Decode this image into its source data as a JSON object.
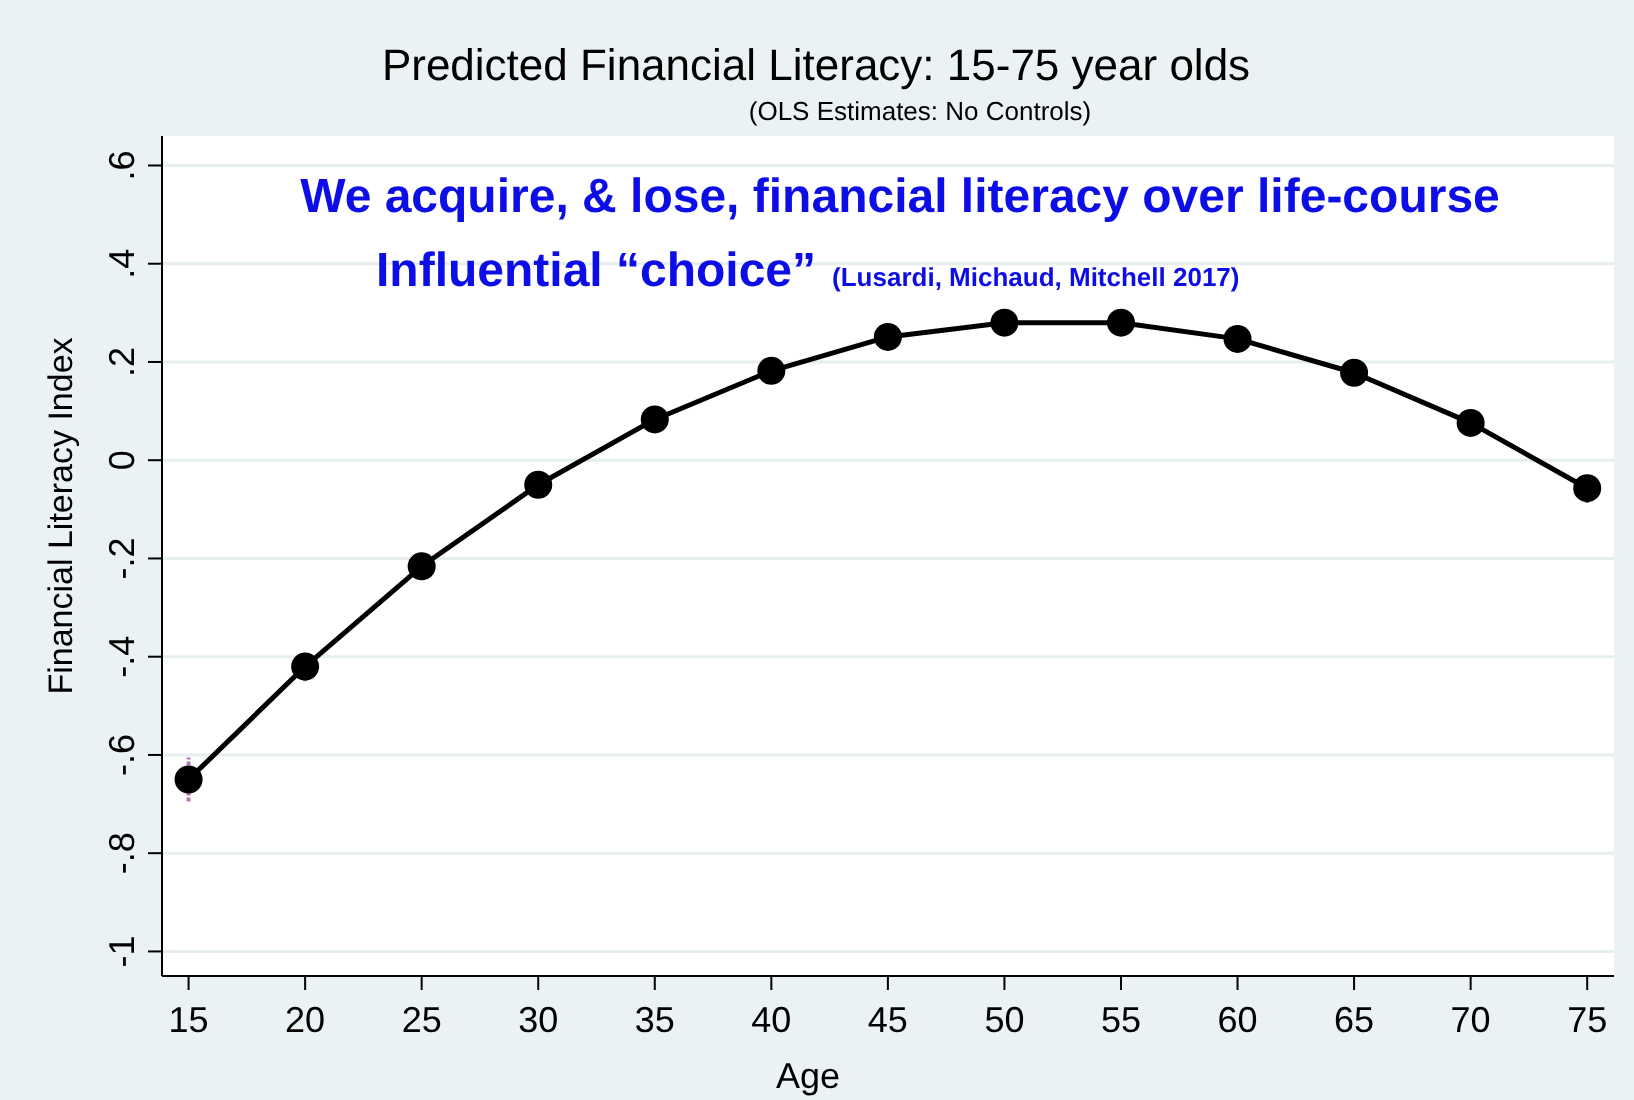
{
  "chart_data": {
    "type": "line",
    "title": "Predicted Financial Literacy: 15-75 year olds",
    "subtitle": "(OLS Estimates: No Controls)",
    "xlabel": "Age",
    "ylabel": "Financial Literacy Index",
    "annotations": [
      "We acquire, & lose, financial literacy over life-course",
      "Influential “choice”",
      "(Lusardi, Michaud, Mitchell 2017)"
    ],
    "x": [
      15,
      20,
      25,
      30,
      35,
      40,
      45,
      50,
      55,
      60,
      65,
      70,
      75
    ],
    "series": [
      {
        "color": "#000000",
        "values": [
          -0.65,
          -0.42,
          -0.216,
          -0.05,
          0.083,
          0.182,
          0.251,
          0.28,
          0.28,
          0.247,
          0.178,
          0.076,
          -0.057
        ],
        "errors": [
          0.045,
          0.03,
          null,
          null,
          null,
          null,
          null,
          null,
          null,
          null,
          null,
          null,
          0.03
        ]
      }
    ],
    "xlim": [
      13.86,
      76.15
    ],
    "ylim": [
      -1.05,
      0.66
    ],
    "xticks": [
      15,
      20,
      25,
      30,
      35,
      40,
      45,
      50,
      55,
      60,
      65,
      70,
      75
    ],
    "yticks": [
      {
        "value": -1,
        "label": "-1"
      },
      {
        "value": -0.8,
        "label": "-.8"
      },
      {
        "value": -0.6,
        "label": "-.6"
      },
      {
        "value": -0.4,
        "label": "-.4"
      },
      {
        "value": -0.2,
        "label": "-.2"
      },
      {
        "value": 0,
        "label": "0"
      },
      {
        "value": 0.2,
        "label": ".2"
      },
      {
        "value": 0.4,
        "label": ".4"
      },
      {
        "value": 0.6,
        "label": ".6"
      }
    ],
    "grid": "y",
    "marker": "circle",
    "line_style": "solid"
  }
}
